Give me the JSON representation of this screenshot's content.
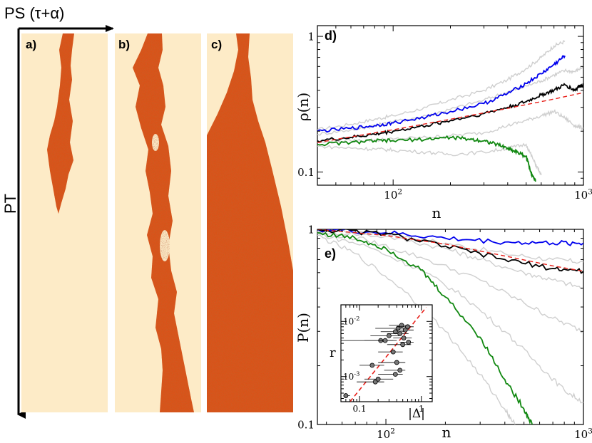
{
  "figure": {
    "axis_ps_label": "PS (τ+α)",
    "axis_pt_label": "PT",
    "panels": [
      {
        "label": "a)",
        "name": "panel-a"
      },
      {
        "label": "b)",
        "name": "panel-b"
      },
      {
        "label": "c)",
        "name": "panel-c"
      }
    ],
    "colors": {
      "background": "#fdebc7",
      "cluster": "#d9531e",
      "cluster_dark": "#a52a0f",
      "blue": "#0000ee",
      "black": "#000000",
      "green": "#118811",
      "gray": "#cfcfcf",
      "red_dash": "#e8201a"
    }
  },
  "chart_data": [
    {
      "id": "d",
      "panel_label": "d)",
      "type": "line",
      "xscale": "log",
      "yscale": "log",
      "xlabel": "n",
      "ylabel": "ρ(n)",
      "xlim": [
        40,
        1000
      ],
      "ylim": [
        0.08,
        1.2
      ],
      "x_ticks": [
        {
          "v": 100,
          "base": "10",
          "exp": "2"
        },
        {
          "v": 1000,
          "base": "10",
          "exp": "3"
        }
      ],
      "y_ticks": [
        {
          "v": 0.1,
          "label": "0.1"
        },
        {
          "v": 1,
          "label": "1"
        }
      ],
      "series": [
        {
          "name": "gray-upper",
          "color": "gray",
          "points": [
            [
              40,
              0.205
            ],
            [
              60,
              0.225
            ],
            [
              80,
              0.245
            ],
            [
              100,
              0.26
            ],
            [
              150,
              0.3
            ],
            [
              200,
              0.34
            ],
            [
              300,
              0.4
            ],
            [
              400,
              0.48
            ],
            [
              500,
              0.58
            ],
            [
              600,
              0.7
            ],
            [
              700,
              0.85
            ],
            [
              800,
              0.92
            ]
          ]
        },
        {
          "name": "gray-mid-upper",
          "color": "gray",
          "points": [
            [
              40,
              0.19
            ],
            [
              60,
              0.205
            ],
            [
              80,
              0.22
            ],
            [
              100,
              0.235
            ],
            [
              150,
              0.26
            ],
            [
              200,
              0.29
            ],
            [
              300,
              0.34
            ],
            [
              400,
              0.39
            ],
            [
              500,
              0.43
            ],
            [
              600,
              0.47
            ],
            [
              700,
              0.52
            ],
            [
              800,
              0.56
            ],
            [
              900,
              0.55
            ],
            [
              1000,
              0.6
            ]
          ]
        },
        {
          "name": "gray-mid-lower",
          "color": "gray",
          "points": [
            [
              40,
              0.165
            ],
            [
              60,
              0.17
            ],
            [
              80,
              0.172
            ],
            [
              100,
              0.175
            ],
            [
              150,
              0.18
            ],
            [
              200,
              0.185
            ],
            [
              300,
              0.195
            ],
            [
              400,
              0.22
            ],
            [
              500,
              0.24
            ],
            [
              600,
              0.26
            ],
            [
              700,
              0.28
            ],
            [
              800,
              0.25
            ],
            [
              900,
              0.22
            ],
            [
              1000,
              0.21
            ]
          ]
        },
        {
          "name": "gray-lower",
          "color": "gray",
          "points": [
            [
              40,
              0.155
            ],
            [
              60,
              0.15
            ],
            [
              80,
              0.148
            ],
            [
              100,
              0.145
            ],
            [
              150,
              0.14
            ],
            [
              200,
              0.135
            ],
            [
              300,
              0.14
            ],
            [
              400,
              0.15
            ],
            [
              500,
              0.16
            ],
            [
              550,
              0.12
            ],
            [
              600,
              0.095
            ]
          ]
        },
        {
          "name": "blue",
          "color": "blue",
          "points": [
            [
              40,
              0.2
            ],
            [
              60,
              0.21
            ],
            [
              80,
              0.22
            ],
            [
              100,
              0.23
            ],
            [
              150,
              0.255
            ],
            [
              200,
              0.28
            ],
            [
              300,
              0.32
            ],
            [
              400,
              0.38
            ],
            [
              500,
              0.45
            ],
            [
              600,
              0.53
            ],
            [
              700,
              0.62
            ],
            [
              800,
              0.72
            ]
          ]
        },
        {
          "name": "black",
          "color": "black",
          "points": [
            [
              40,
              0.17
            ],
            [
              60,
              0.18
            ],
            [
              80,
              0.19
            ],
            [
              100,
              0.2
            ],
            [
              150,
              0.22
            ],
            [
              200,
              0.24
            ],
            [
              300,
              0.27
            ],
            [
              400,
              0.3
            ],
            [
              500,
              0.33
            ],
            [
              600,
              0.37
            ],
            [
              700,
              0.4
            ],
            [
              800,
              0.44
            ],
            [
              900,
              0.4
            ],
            [
              950,
              0.43
            ],
            [
              1000,
              0.44
            ]
          ]
        },
        {
          "name": "green",
          "color": "green",
          "points": [
            [
              40,
              0.16
            ],
            [
              60,
              0.165
            ],
            [
              80,
              0.17
            ],
            [
              100,
              0.17
            ],
            [
              150,
              0.175
            ],
            [
              200,
              0.18
            ],
            [
              250,
              0.175
            ],
            [
              300,
              0.17
            ],
            [
              350,
              0.16
            ],
            [
              400,
              0.15
            ],
            [
              450,
              0.14
            ],
            [
              500,
              0.13
            ],
            [
              530,
              0.1
            ],
            [
              560,
              0.085
            ]
          ]
        },
        {
          "name": "fit",
          "color": "red_dash",
          "dashed": true,
          "points": [
            [
              40,
              0.165
            ],
            [
              100,
              0.205
            ],
            [
              200,
              0.245
            ],
            [
              400,
              0.295
            ],
            [
              700,
              0.345
            ],
            [
              1000,
              0.385
            ]
          ]
        }
      ]
    },
    {
      "id": "e",
      "panel_label": "e)",
      "type": "line",
      "xscale": "log",
      "yscale": "log",
      "xlabel": "n",
      "ylabel": "P(n)",
      "xlim": [
        45,
        1000
      ],
      "ylim": [
        0.1,
        1.0
      ],
      "x_ticks": [
        {
          "v": 100,
          "base": "10",
          "exp": "2"
        },
        {
          "v": 1000,
          "base": "10",
          "exp": "3"
        }
      ],
      "y_ticks": [
        {
          "v": 0.1,
          "label": "0.1"
        },
        {
          "v": 1,
          "label": "1"
        }
      ],
      "series": [
        {
          "name": "gray-1",
          "color": "gray",
          "points": [
            [
              45,
              1.0
            ],
            [
              100,
              0.95
            ],
            [
              200,
              0.85
            ],
            [
              400,
              0.75
            ],
            [
              700,
              0.7
            ],
            [
              1000,
              0.68
            ]
          ]
        },
        {
          "name": "gray-2",
          "color": "gray",
          "points": [
            [
              45,
              0.98
            ],
            [
              100,
              0.92
            ],
            [
              200,
              0.8
            ],
            [
              300,
              0.7
            ],
            [
              500,
              0.6
            ],
            [
              700,
              0.55
            ],
            [
              1000,
              0.5
            ]
          ]
        },
        {
          "name": "gray-3",
          "color": "gray",
          "points": [
            [
              45,
              0.97
            ],
            [
              80,
              0.88
            ],
            [
              150,
              0.72
            ],
            [
              300,
              0.55
            ],
            [
              500,
              0.42
            ],
            [
              700,
              0.35
            ],
            [
              1000,
              0.3
            ]
          ]
        },
        {
          "name": "gray-4",
          "color": "gray",
          "points": [
            [
              45,
              0.95
            ],
            [
              80,
              0.82
            ],
            [
              150,
              0.62
            ],
            [
              250,
              0.45
            ],
            [
              400,
              0.3
            ],
            [
              600,
              0.2
            ],
            [
              800,
              0.15
            ],
            [
              1000,
              0.13
            ]
          ]
        },
        {
          "name": "gray-5",
          "color": "gray",
          "points": [
            [
              45,
              0.93
            ],
            [
              70,
              0.75
            ],
            [
              120,
              0.5
            ],
            [
              200,
              0.3
            ],
            [
              300,
              0.18
            ],
            [
              400,
              0.12
            ],
            [
              450,
              0.1
            ]
          ]
        },
        {
          "name": "blue",
          "color": "blue",
          "points": [
            [
              45,
              1.0
            ],
            [
              100,
              0.96
            ],
            [
              200,
              0.9
            ],
            [
              400,
              0.86
            ],
            [
              700,
              0.85
            ],
            [
              1000,
              0.85
            ]
          ]
        },
        {
          "name": "black",
          "color": "black",
          "points": [
            [
              45,
              1.0
            ],
            [
              100,
              0.95
            ],
            [
              200,
              0.82
            ],
            [
              400,
              0.7
            ],
            [
              700,
              0.63
            ],
            [
              1000,
              0.61
            ]
          ]
        },
        {
          "name": "green",
          "color": "green",
          "points": [
            [
              45,
              0.96
            ],
            [
              70,
              0.9
            ],
            [
              100,
              0.8
            ],
            [
              150,
              0.62
            ],
            [
              200,
              0.45
            ],
            [
              300,
              0.28
            ],
            [
              400,
              0.17
            ],
            [
              500,
              0.12
            ],
            [
              550,
              0.1
            ]
          ]
        },
        {
          "name": "fit",
          "color": "red_dash",
          "dashed": true,
          "points": [
            [
              45,
              1.0
            ],
            [
              100,
              0.93
            ],
            [
              200,
              0.84
            ],
            [
              400,
              0.73
            ],
            [
              700,
              0.65
            ],
            [
              1000,
              0.61
            ]
          ]
        }
      ]
    },
    {
      "id": "inset",
      "type": "scatter",
      "xscale": "log",
      "yscale": "log",
      "xlabel": "|Δ|",
      "ylabel": "r",
      "xlim": [
        0.05,
        1.5
      ],
      "ylim": [
        0.00035,
        0.02
      ],
      "x_ticks": [
        {
          "v": 0.1,
          "label": "0.1"
        },
        {
          "v": 1,
          "label": "1"
        }
      ],
      "y_ticks": [
        {
          "v": 0.001,
          "base": "10",
          "exp": "-3"
        },
        {
          "v": 0.01,
          "base": "10",
          "exp": "-2"
        }
      ],
      "points": [
        {
          "x": 0.06,
          "y": 0.00045,
          "xerr": [
            0.055,
            0.07
          ]
        },
        {
          "x": 0.16,
          "y": 0.0016,
          "xerr": [
            0.1,
            0.25
          ]
        },
        {
          "x": 0.18,
          "y": 0.0008,
          "xerr": [
            0.09,
            0.25
          ]
        },
        {
          "x": 0.2,
          "y": 0.0009,
          "xerr": [
            0.12,
            0.35
          ]
        },
        {
          "x": 0.22,
          "y": 0.0045,
          "xerr": [
            0.05,
            0.35
          ]
        },
        {
          "x": 0.26,
          "y": 0.0045,
          "xerr": [
            0.12,
            0.4
          ]
        },
        {
          "x": 0.3,
          "y": 0.0055,
          "xerr": [
            0.15,
            0.45
          ]
        },
        {
          "x": 0.35,
          "y": 0.0028,
          "xerr": [
            0.2,
            0.5
          ]
        },
        {
          "x": 0.38,
          "y": 0.0065,
          "xerr": [
            0.22,
            0.55
          ]
        },
        {
          "x": 0.42,
          "y": 0.0075,
          "xerr": [
            0.18,
            0.6
          ]
        },
        {
          "x": 0.45,
          "y": 0.006,
          "xerr": [
            0.28,
            0.62
          ]
        },
        {
          "x": 0.48,
          "y": 0.0085,
          "xerr": [
            0.3,
            0.65
          ]
        },
        {
          "x": 0.52,
          "y": 0.005,
          "xerr": [
            0.35,
            0.7
          ]
        },
        {
          "x": 0.55,
          "y": 0.007,
          "xerr": [
            0.4,
            0.75
          ]
        },
        {
          "x": 0.6,
          "y": 0.008,
          "xerr": [
            0.4,
            0.75
          ]
        },
        {
          "x": 0.62,
          "y": 0.0042,
          "xerr": [
            0.45,
            0.75
          ]
        },
        {
          "x": 0.5,
          "y": 0.0038,
          "xerr": [
            0.28,
            0.68
          ]
        },
        {
          "x": 0.4,
          "y": 0.0018,
          "xerr": [
            0.2,
            0.55
          ]
        },
        {
          "x": 0.38,
          "y": 0.0011,
          "xerr": [
            0.2,
            0.5
          ]
        },
        {
          "x": 0.45,
          "y": 0.0013,
          "xerr": [
            0.25,
            0.55
          ]
        }
      ],
      "fit": [
        [
          0.07,
          0.00035
        ],
        [
          1.2,
          0.018
        ]
      ]
    }
  ]
}
